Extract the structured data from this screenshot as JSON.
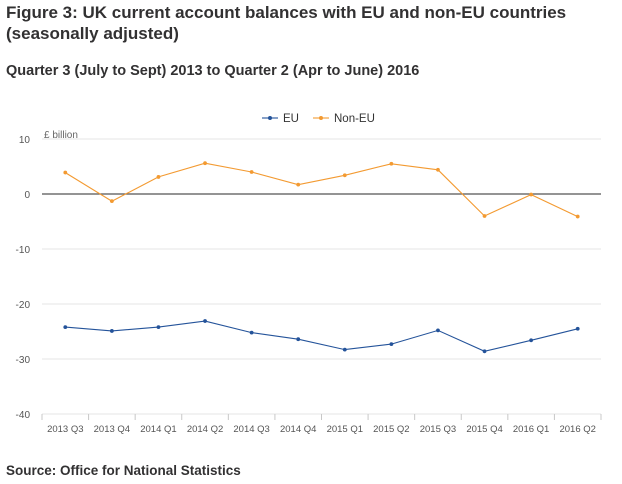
{
  "figure": {
    "title": "Figure 3: UK current account balances with EU and non-EU countries (seasonally adjusted)",
    "subtitle": "Quarter 3 (July to Sept) 2013 to Quarter 2 (Apr to June) 2016",
    "source": "Source: Office for National Statistics"
  },
  "chart_data": {
    "type": "line",
    "title": "Figure 3: UK current account balances with EU and non-EU countries (seasonally adjusted)",
    "subtitle": "Quarter 3 (July to Sept) 2013 to Quarter 2 (Apr to June) 2016",
    "xlabel": "",
    "ylabel": "£ billion",
    "ylim": [
      -40,
      10
    ],
    "yticks": [
      10,
      0,
      -10,
      -20,
      -30,
      -40
    ],
    "grid": true,
    "legend_position": "top-center",
    "categories": [
      "2013 Q3",
      "2013 Q4",
      "2014 Q1",
      "2014 Q2",
      "2014 Q3",
      "2014 Q4",
      "2015 Q1",
      "2015 Q2",
      "2015 Q3",
      "2015 Q4",
      "2016 Q1",
      "2016 Q2"
    ],
    "series": [
      {
        "name": "EU",
        "color": "#24539a",
        "values": [
          -24.2,
          -24.9,
          -24.2,
          -23.1,
          -25.2,
          -26.4,
          -28.3,
          -27.3,
          -24.8,
          -28.6,
          -26.6,
          -24.5
        ]
      },
      {
        "name": "Non-EU",
        "color": "#f39a31",
        "values": [
          3.9,
          -1.3,
          3.1,
          5.6,
          4.0,
          1.7,
          3.4,
          5.5,
          4.4,
          -4.0,
          -0.1,
          -4.1
        ]
      }
    ]
  }
}
